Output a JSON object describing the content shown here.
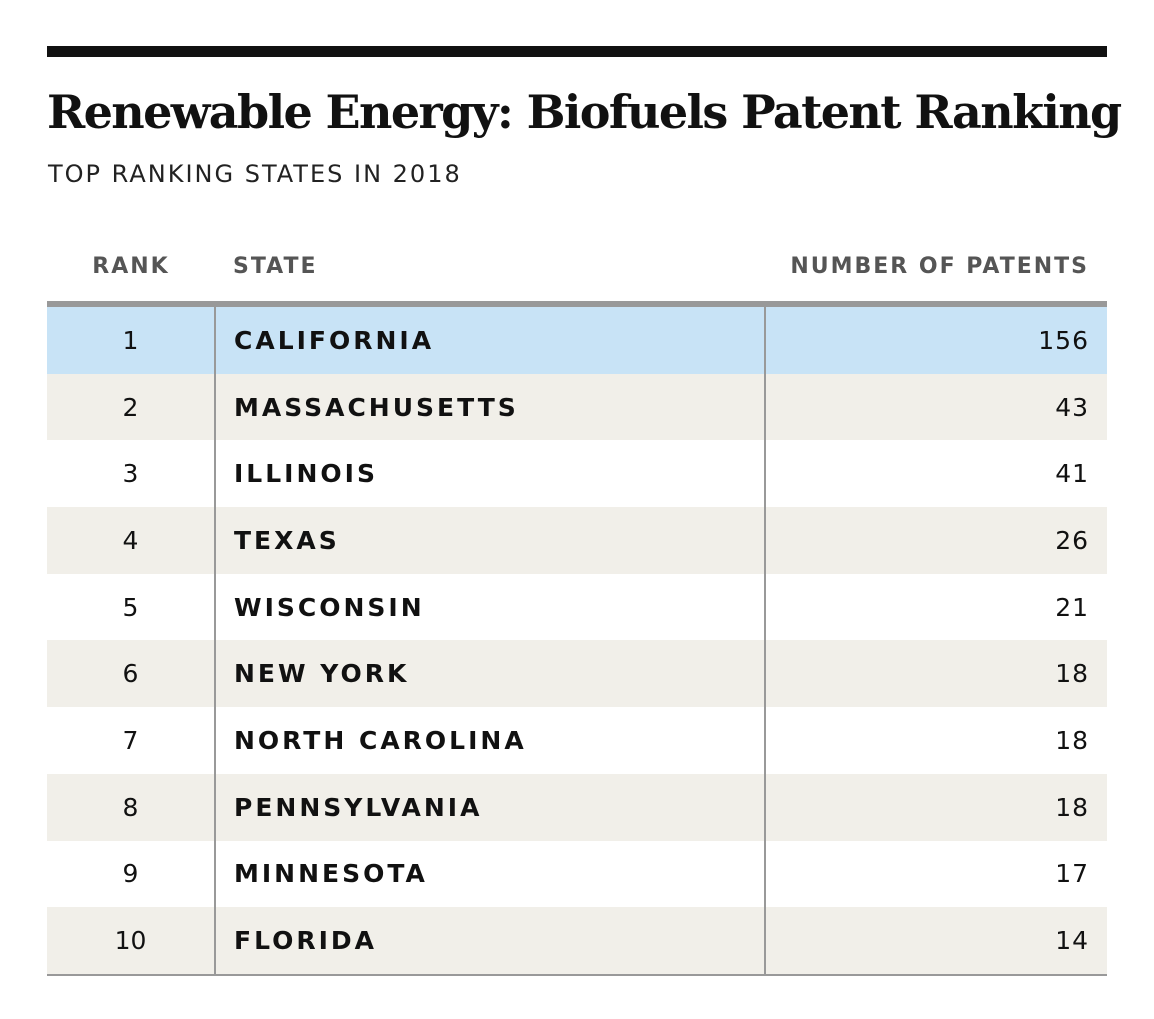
{
  "title": "Renewable Energy: Biofuels Patent Ranking",
  "subtitle": "TOP RANKING STATES IN 2018",
  "colors": {
    "highlight": "#c8e3f6",
    "band": "#f1efe9",
    "rule": "#111111",
    "divider": "#999999"
  },
  "chart_data": {
    "type": "table",
    "title": "Renewable Energy: Biofuels Patent Ranking",
    "subtitle": "TOP RANKING STATES IN 2018",
    "columns": [
      "RANK",
      "STATE",
      "NUMBER OF PATENTS"
    ],
    "highlighted_rank": 1,
    "rows": [
      {
        "rank": "1",
        "state": "CALIFORNIA",
        "patents": "156"
      },
      {
        "rank": "2",
        "state": "MASSACHUSETTS",
        "patents": "43"
      },
      {
        "rank": "3",
        "state": "ILLINOIS",
        "patents": "41"
      },
      {
        "rank": "4",
        "state": "TEXAS",
        "patents": "26"
      },
      {
        "rank": "5",
        "state": "WISCONSIN",
        "patents": "21"
      },
      {
        "rank": "6",
        "state": "NEW YORK",
        "patents": "18"
      },
      {
        "rank": "7",
        "state": "NORTH CAROLINA",
        "patents": "18"
      },
      {
        "rank": "8",
        "state": "PENNSYLVANIA",
        "patents": "18"
      },
      {
        "rank": "9",
        "state": "MINNESOTA",
        "patents": "17"
      },
      {
        "rank": "10",
        "state": "FLORIDA",
        "patents": "14"
      }
    ]
  }
}
